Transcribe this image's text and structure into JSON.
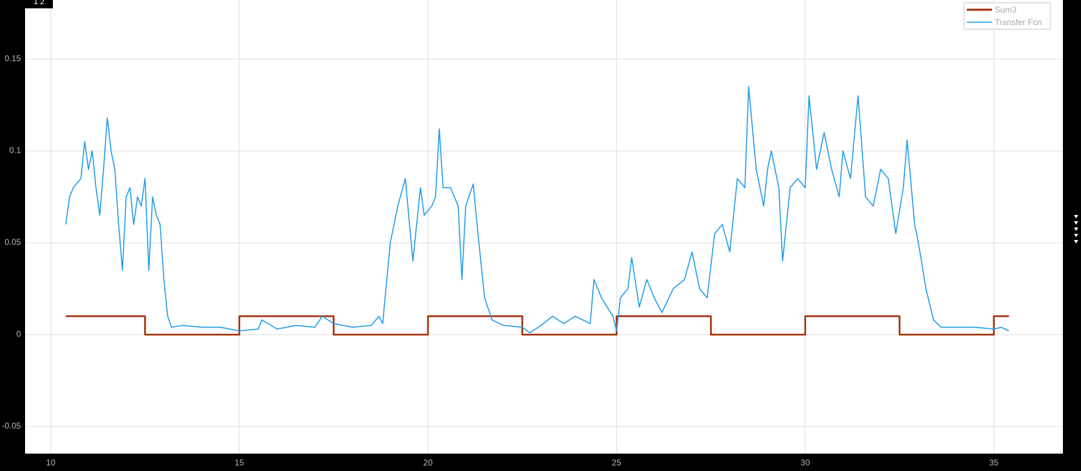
{
  "toolbar": {
    "layout_label": "1  2"
  },
  "chart_data": {
    "type": "line",
    "xlim": [
      9.32,
      36.83
    ],
    "ylim": [
      -0.0648,
      0.1822
    ],
    "xticks": [
      10,
      15,
      20,
      25,
      30,
      35
    ],
    "yticks": [
      -0.05,
      0,
      0.05,
      0.1,
      0.15
    ],
    "grid": true,
    "legend": "upper right",
    "series": [
      {
        "name": "Sum3",
        "color": "#a2320e",
        "x": [
          10.4,
          12.5,
          12.5,
          15,
          15,
          17.5,
          17.5,
          20,
          20,
          22.5,
          22.5,
          25,
          25,
          27.5,
          27.5,
          30,
          30,
          32.5,
          32.5,
          35,
          35,
          35.4
        ],
        "values": [
          0.01,
          0.01,
          0,
          0,
          0.01,
          0.01,
          0,
          0,
          0.01,
          0.01,
          0,
          0,
          0.01,
          0.01,
          0,
          0,
          0.01,
          0.01,
          0,
          0,
          0.01,
          0.01
        ]
      },
      {
        "name": "Transfer Fcn",
        "color": "#1e9be8",
        "x": [
          10.4,
          10.5,
          10.6,
          10.8,
          10.9,
          11.0,
          11.1,
          11.2,
          11.3,
          11.4,
          11.5,
          11.6,
          11.7,
          11.8,
          11.9,
          12.0,
          12.1,
          12.2,
          12.3,
          12.4,
          12.5,
          12.6,
          12.7,
          12.8,
          12.9,
          13.0,
          13.1,
          13.2,
          13.5,
          14,
          14.5,
          15,
          15.5,
          15.6,
          16,
          16.5,
          17,
          17.2,
          17.5,
          18,
          18.5,
          18.7,
          18.8,
          19,
          19.2,
          19.4,
          19.6,
          19.8,
          19.9,
          20.1,
          20.2,
          20.3,
          20.4,
          20.6,
          20.8,
          20.9,
          21.0,
          21.2,
          21.3,
          21.5,
          21.7,
          22,
          22.5,
          22.7,
          23,
          23.3,
          23.6,
          23.9,
          24.3,
          24.4,
          24.6,
          24.9,
          25.0,
          25.1,
          25.3,
          25.4,
          25.6,
          25.8,
          26,
          26.2,
          26.5,
          26.8,
          27,
          27.2,
          27.4,
          27.6,
          27.8,
          28,
          28.2,
          28.4,
          28.5,
          28.7,
          28.9,
          29.0,
          29.1,
          29.3,
          29.4,
          29.6,
          29.8,
          30,
          30.1,
          30.3,
          30.5,
          30.7,
          30.9,
          31.0,
          31.2,
          31.4,
          31.6,
          31.8,
          32,
          32.2,
          32.4,
          32.6,
          32.7,
          32.9,
          33,
          33.2,
          33.4,
          33.6,
          34,
          34.5,
          35,
          35.2,
          35.4
        ],
        "values": [
          0.06,
          0.075,
          0.08,
          0.085,
          0.105,
          0.09,
          0.1,
          0.08,
          0.065,
          0.09,
          0.118,
          0.1,
          0.09,
          0.06,
          0.035,
          0.075,
          0.08,
          0.06,
          0.075,
          0.07,
          0.085,
          0.035,
          0.075,
          0.065,
          0.06,
          0.03,
          0.01,
          0.004,
          0.005,
          0.004,
          0.004,
          0.002,
          0.003,
          0.008,
          0.003,
          0.005,
          0.004,
          0.01,
          0.006,
          0.004,
          0.005,
          0.01,
          0.006,
          0.05,
          0.07,
          0.085,
          0.04,
          0.08,
          0.065,
          0.07,
          0.075,
          0.112,
          0.08,
          0.08,
          0.07,
          0.03,
          0.07,
          0.082,
          0.06,
          0.02,
          0.008,
          0.005,
          0.004,
          0.001,
          0.005,
          0.01,
          0.006,
          0.01,
          0.006,
          0.03,
          0.02,
          0.01,
          0.002,
          0.02,
          0.025,
          0.042,
          0.015,
          0.03,
          0.02,
          0.012,
          0.025,
          0.03,
          0.045,
          0.025,
          0.02,
          0.055,
          0.06,
          0.045,
          0.085,
          0.08,
          0.135,
          0.09,
          0.07,
          0.09,
          0.1,
          0.08,
          0.04,
          0.08,
          0.085,
          0.08,
          0.13,
          0.09,
          0.11,
          0.09,
          0.075,
          0.1,
          0.085,
          0.13,
          0.075,
          0.07,
          0.09,
          0.085,
          0.055,
          0.08,
          0.106,
          0.06,
          0.05,
          0.025,
          0.008,
          0.004,
          0.004,
          0.004,
          0.003,
          0.004,
          0.002
        ]
      }
    ]
  }
}
